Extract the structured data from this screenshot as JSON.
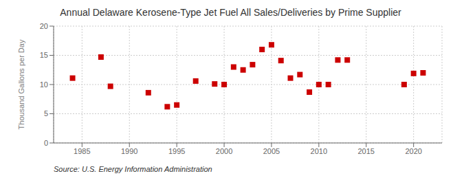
{
  "chart_data": {
    "type": "scatter",
    "title": "Annual Delaware Kerosene-Type Jet Fuel All Sales/Deliveries by Prime Supplier",
    "ylabel": "Thousand Gallons per Day",
    "annotation": "Source: U.S. Energy Information Administration",
    "x": [
      1984,
      1987,
      1988,
      1992,
      1994,
      1995,
      1997,
      1999,
      2000,
      2001,
      2002,
      2003,
      2004,
      2005,
      2006,
      2007,
      2008,
      2009,
      2010,
      2011,
      2012,
      2013,
      2019,
      2020,
      2021
    ],
    "values": [
      11.1,
      14.7,
      9.7,
      8.6,
      6.2,
      6.5,
      10.6,
      10.1,
      10.0,
      13.0,
      12.5,
      13.4,
      16.0,
      16.8,
      14.1,
      11.1,
      11.7,
      8.7,
      10.0,
      10.0,
      14.2,
      14.2,
      10.0,
      11.9,
      12.0
    ],
    "color": "#cc0000",
    "marker": "square",
    "xlim": [
      1982,
      2023
    ],
    "xticks": [
      1985,
      1990,
      1995,
      2000,
      2005,
      2010,
      2015,
      2020
    ],
    "ylim": [
      0,
      20
    ],
    "yticks": [
      0,
      5,
      10,
      15,
      20
    ],
    "grid": true
  }
}
